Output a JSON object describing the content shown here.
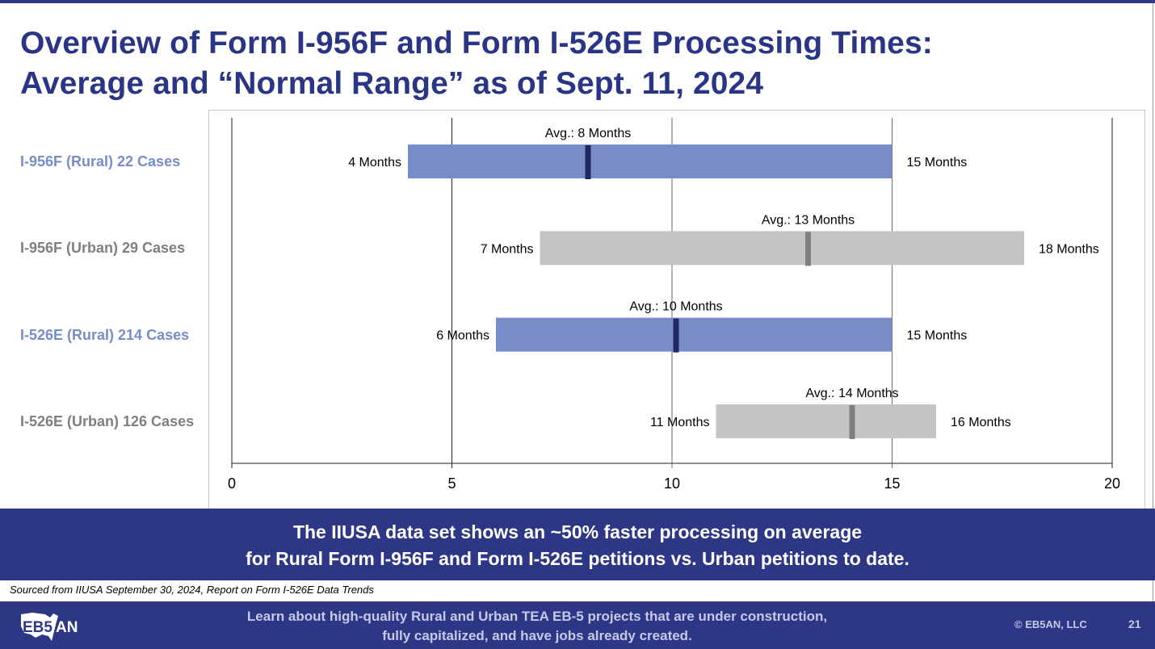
{
  "slide": {
    "title_line1": "Overview of Form I-956F and Form I-526E Processing Times:",
    "title_line2": "Average and “Normal Range” as of Sept. 11, 2024",
    "banner_line1": "The IIUSA data set shows an ~50% faster processing on average",
    "banner_line2": "for Rural Form I-956F and Form I-526E petitions vs. Urban petitions to date.",
    "source": "Sourced from IIUSA September 30, 2024, Report on Form I-526E Data Trends",
    "footer_line1": "Learn about high-quality Rural and Urban TEA EB-5 projects that are under construction,",
    "footer_line2": "fully capitalized, and have jobs already created.",
    "logo_text": "EB5AN",
    "copyright": "© EB5AN, LLC",
    "page_number": "21"
  },
  "colors": {
    "brand_navy": "#2d3786",
    "rural_bar": "#788cc8",
    "rural_marker": "#1f2a63",
    "rural_label": "#788cc8",
    "urban_bar": "#c4c4c4",
    "urban_marker": "#7f7f7f",
    "urban_label": "#7f7f7f"
  },
  "chart_data": {
    "type": "bar",
    "subtype": "floating-range-with-average-marker",
    "orientation": "horizontal",
    "title": "",
    "xlabel": "",
    "ylabel": "",
    "xlim": [
      0,
      20
    ],
    "x_ticks": [
      0,
      5,
      10,
      15,
      20
    ],
    "grid": true,
    "legend": "none",
    "categories": [
      "I-956F (Rural) 22 Cases",
      "I-956F (Urban) 29 Cases",
      "I-526E (Rural) 214 Cases",
      "I-526E (Urban) 126 Cases"
    ],
    "series": [
      {
        "name": "I-956F (Rural)",
        "group": "rural",
        "cases": 22,
        "min": 4,
        "max": 15,
        "avg": 8,
        "min_label": "4 Months",
        "max_label": "15 Months",
        "avg_label": "Avg.: 8 Months"
      },
      {
        "name": "I-956F (Urban)",
        "group": "urban",
        "cases": 29,
        "min": 7,
        "max": 18,
        "avg": 13,
        "min_label": "7 Months",
        "max_label": "18 Months",
        "avg_label": "Avg.: 13 Months"
      },
      {
        "name": "I-526E (Rural)",
        "group": "rural",
        "cases": 214,
        "min": 6,
        "max": 15,
        "avg": 10,
        "min_label": "6 Months",
        "max_label": "15 Months",
        "avg_label": "Avg.: 10 Months"
      },
      {
        "name": "I-526E (Urban)",
        "group": "urban",
        "cases": 126,
        "min": 11,
        "max": 16,
        "avg": 14,
        "min_label": "11 Months",
        "max_label": "16 Months",
        "avg_label": "Avg.: 14 Months"
      }
    ]
  }
}
